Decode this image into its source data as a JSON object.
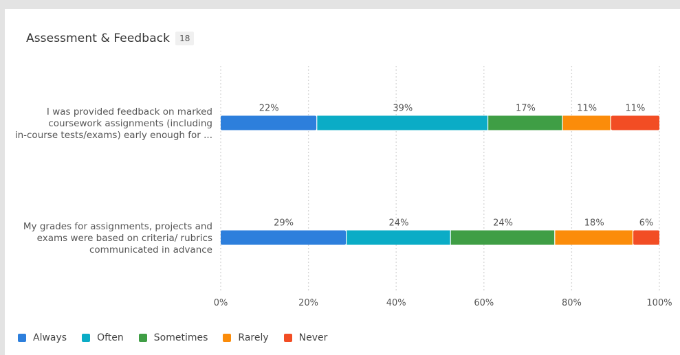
{
  "section": {
    "title": "Assessment & Feedback",
    "count": "18"
  },
  "chart_data": {
    "type": "bar",
    "orientation": "horizontal",
    "stacked": true,
    "normalized": true,
    "categories": [
      "I was provided feedback on marked coursework assignments (including in-course tests/exams) early enough for ...",
      "My grades for assignments, projects and exams were based on criteria/ rubrics communicated in advance"
    ],
    "category_lines": [
      [
        "I was provided feedback on marked",
        "coursework assignments (including",
        "in-course tests/exams) early enough for ..."
      ],
      [
        "My grades for assignments, projects and",
        "exams were based on criteria/ rubrics",
        "communicated in advance"
      ]
    ],
    "series": [
      {
        "name": "Always",
        "color": "#2d7fdc",
        "values": [
          22,
          29
        ],
        "labels": [
          "22%",
          "29%"
        ]
      },
      {
        "name": "Often",
        "color": "#0bacc6",
        "values": [
          39,
          24
        ],
        "labels": [
          "39%",
          "24%"
        ]
      },
      {
        "name": "Sometimes",
        "color": "#3f9e45",
        "values": [
          17,
          24
        ],
        "labels": [
          "17%",
          "24%"
        ]
      },
      {
        "name": "Rarely",
        "color": "#fb8c0a",
        "values": [
          11,
          18
        ],
        "labels": [
          "11%",
          "18%"
        ]
      },
      {
        "name": "Never",
        "color": "#f24d24",
        "values": [
          11,
          6
        ],
        "labels": [
          "11%",
          "6%"
        ]
      }
    ],
    "xlim": [
      0,
      100
    ],
    "xticks": [
      "0%",
      "20%",
      "40%",
      "60%",
      "80%",
      "100%"
    ],
    "grid": true,
    "legend_position": "bottom-left"
  }
}
